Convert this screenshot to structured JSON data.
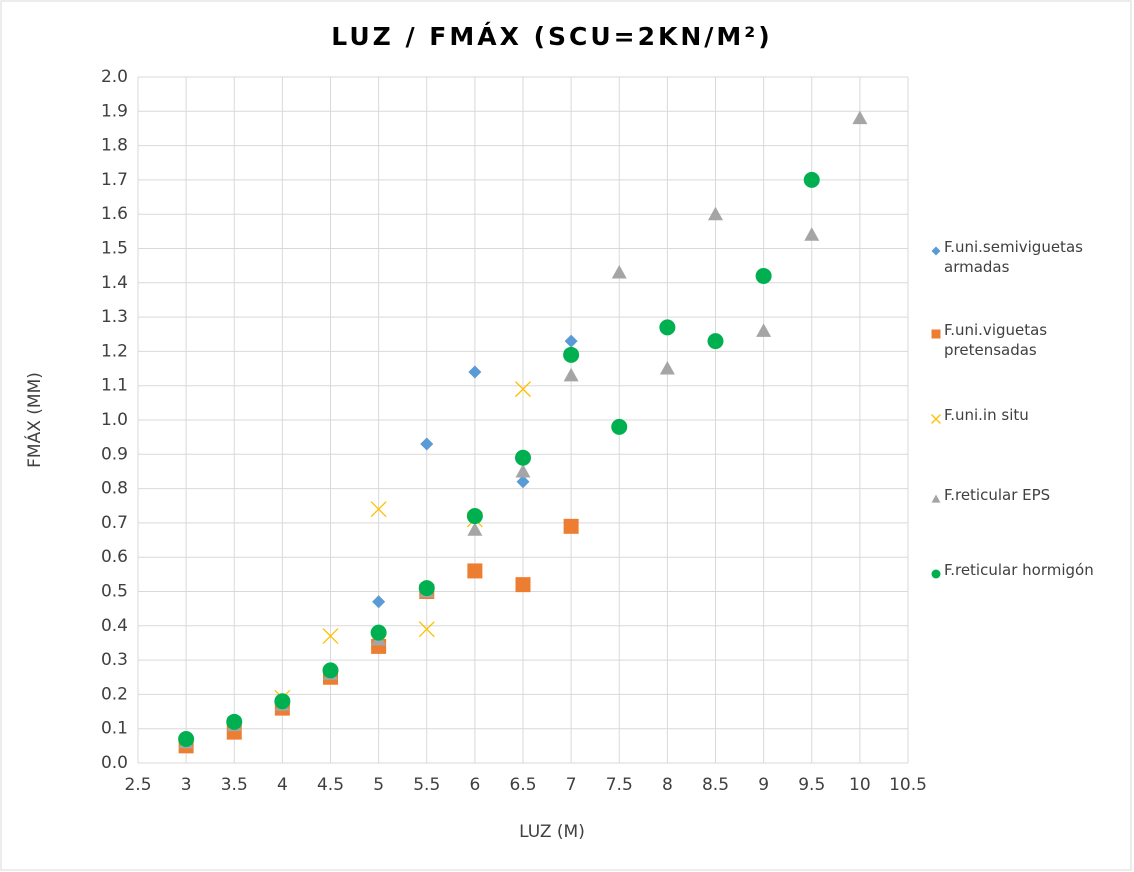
{
  "chart_data": {
    "type": "scatter",
    "title": "LUZ / FMÁX (SCU=2KN/M²)",
    "x_label": "LUZ (M)",
    "y_label": "FMÁX (MM)",
    "xlim": [
      2.5,
      10.5
    ],
    "xticks": [
      2.5,
      3,
      3.5,
      4,
      4.5,
      5,
      5.5,
      6,
      6.5,
      7,
      7.5,
      8,
      8.5,
      9,
      9.5,
      10,
      10.5
    ],
    "ylim": [
      0,
      2
    ],
    "yticks": [
      {
        "value": 0,
        "label": "0.0"
      },
      0.1,
      0.2,
      0.3,
      0.4,
      0.5,
      0.6,
      0.7,
      0.8,
      0.9,
      {
        "value": 1,
        "label": "1.0"
      },
      1.1,
      1.2,
      1.3,
      1.4,
      1.5,
      1.6,
      1.7,
      1.8,
      1.9,
      {
        "value": 2,
        "label": "2.0"
      }
    ],
    "grid": true,
    "legend": "right",
    "series": [
      {
        "name": "F.uni.semiviguetas armadas",
        "color": "#5b9bd5",
        "marker": "diamond",
        "x": [
          5,
          5.5,
          6,
          6.5,
          7
        ],
        "values": [
          0.47,
          0.93,
          1.14,
          0.82,
          1.23
        ]
      },
      {
        "name": "F.uni.viguetas pretensadas",
        "color": "#ed7d31",
        "marker": "square",
        "x": [
          3,
          3.5,
          4,
          4.5,
          5,
          5.5,
          6,
          6.5,
          7
        ],
        "values": [
          0.05,
          0.09,
          0.16,
          0.25,
          0.34,
          0.5,
          0.56,
          0.52,
          0.69
        ]
      },
      {
        "name": "F.uni.in situ",
        "color": "#ffc000",
        "marker": "x",
        "x": [
          4,
          4.5,
          5,
          5.5,
          6,
          6.5
        ],
        "values": [
          0.19,
          0.37,
          0.74,
          0.39,
          0.71,
          1.09
        ]
      },
      {
        "name": "F.reticular EPS",
        "color": "#a5a5a5",
        "marker": "triangle",
        "x": [
          3,
          3.5,
          4,
          4.5,
          5,
          5.5,
          6,
          6.5,
          7,
          7.5,
          8,
          8.5,
          9,
          9.5,
          10
        ],
        "values": [
          0.06,
          0.11,
          0.17,
          0.26,
          0.36,
          0.5,
          0.68,
          0.85,
          1.13,
          1.43,
          1.15,
          1.6,
          1.26,
          1.54,
          1.88
        ]
      },
      {
        "name": "F.reticular hormigón",
        "color": "#00b050",
        "marker": "circle",
        "x": [
          3,
          3.5,
          4,
          4.5,
          5,
          5.5,
          6,
          6.5,
          7,
          7.5,
          8,
          8.5,
          9,
          9.5
        ],
        "values": [
          0.07,
          0.12,
          0.18,
          0.27,
          0.38,
          0.51,
          0.72,
          0.89,
          1.19,
          0.98,
          1.27,
          1.23,
          1.42,
          1.7
        ]
      }
    ]
  }
}
